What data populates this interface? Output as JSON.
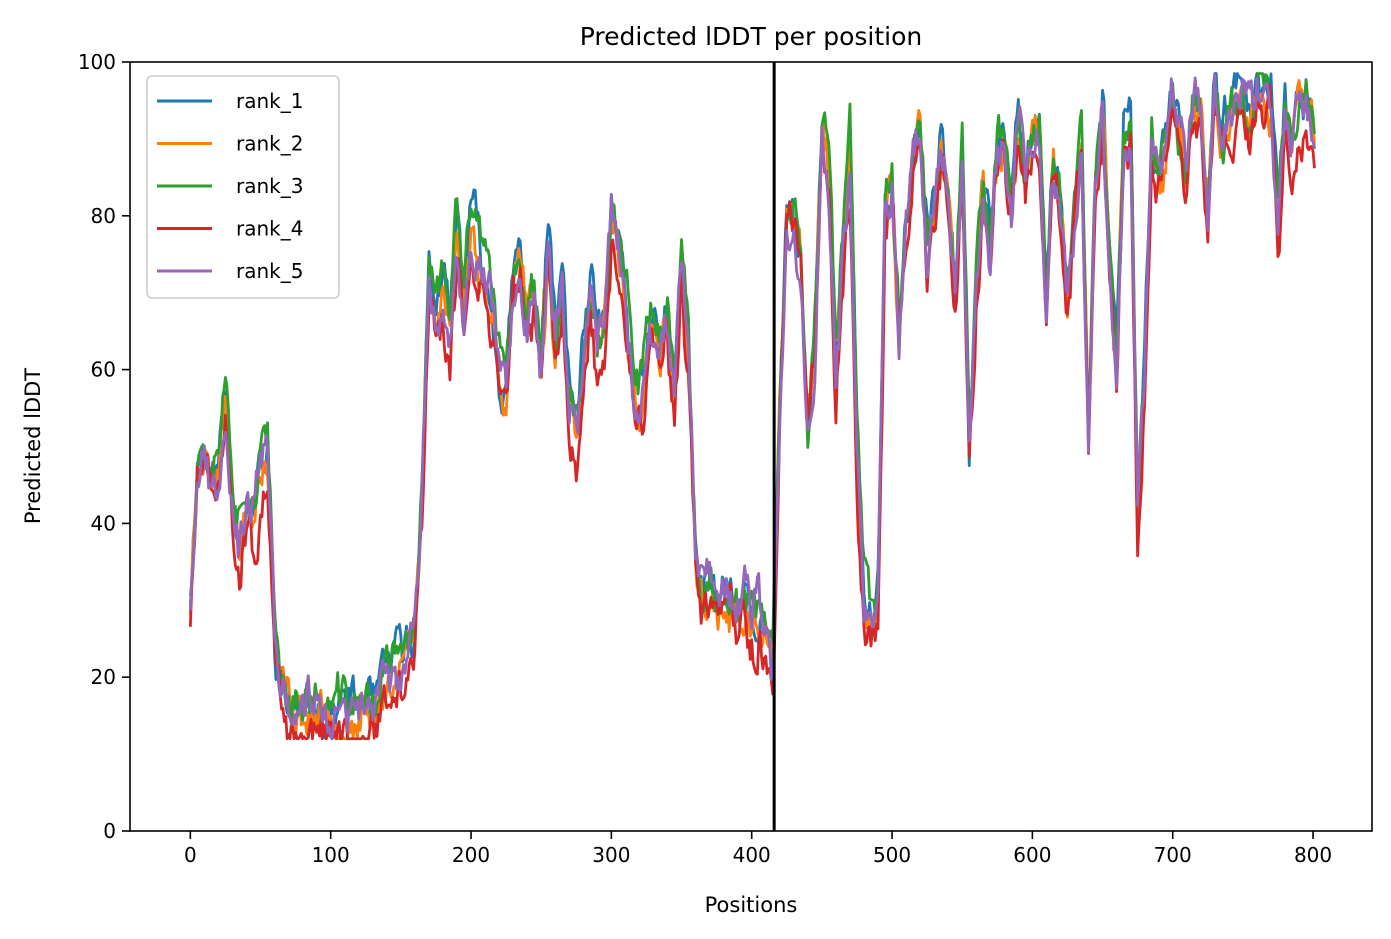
{
  "chart_data": {
    "type": "line",
    "title": "Predicted lDDT per position",
    "xlabel": "Positions",
    "ylabel": "Predicted lDDT",
    "xlim": [
      -43,
      842
    ],
    "ylim": [
      0,
      100
    ],
    "xticks": [
      0,
      100,
      200,
      300,
      400,
      500,
      600,
      700,
      800
    ],
    "yticks": [
      0,
      20,
      40,
      60,
      80,
      100
    ],
    "grid": false,
    "legend_position": "top-left",
    "vlines": [
      {
        "x": 416,
        "color": "#000000"
      }
    ],
    "base_profile": {
      "x": [
        0,
        5,
        10,
        15,
        20,
        25,
        30,
        35,
        40,
        45,
        50,
        55,
        60,
        65,
        70,
        80,
        90,
        100,
        110,
        120,
        130,
        140,
        150,
        160,
        165,
        170,
        175,
        180,
        185,
        190,
        195,
        200,
        205,
        210,
        215,
        220,
        225,
        230,
        235,
        240,
        245,
        250,
        255,
        260,
        265,
        270,
        275,
        280,
        285,
        290,
        295,
        300,
        305,
        310,
        315,
        320,
        325,
        330,
        335,
        340,
        345,
        350,
        355,
        360,
        365,
        370,
        375,
        380,
        385,
        390,
        395,
        400,
        405,
        410,
        415,
        418,
        420,
        425,
        430,
        435,
        440,
        445,
        450,
        455,
        460,
        465,
        470,
        475,
        480,
        485,
        490,
        495,
        500,
        505,
        510,
        515,
        520,
        525,
        530,
        535,
        540,
        545,
        550,
        555,
        560,
        565,
        570,
        575,
        580,
        585,
        590,
        595,
        600,
        605,
        610,
        615,
        620,
        625,
        630,
        635,
        640,
        645,
        650,
        655,
        660,
        665,
        670,
        675,
        680,
        685,
        690,
        695,
        700,
        705,
        710,
        715,
        720,
        725,
        730,
        735,
        740,
        745,
        750,
        755,
        760,
        765,
        770,
        775,
        780,
        785,
        790,
        795,
        800,
        802
      ],
      "y": [
        30,
        48,
        50,
        45,
        48,
        57,
        45,
        38,
        42,
        40,
        47,
        48,
        25,
        18,
        16,
        15,
        15,
        15,
        16,
        15,
        16,
        20,
        22,
        25,
        45,
        72,
        68,
        70,
        65,
        78,
        68,
        80,
        76,
        72,
        68,
        60,
        58,
        72,
        75,
        65,
        70,
        60,
        78,
        64,
        72,
        56,
        50,
        60,
        70,
        62,
        65,
        80,
        75,
        68,
        58,
        55,
        60,
        65,
        62,
        66,
        55,
        72,
        60,
        35,
        30,
        32,
        29,
        31,
        30,
        27,
        30,
        26,
        28,
        25,
        20,
        40,
        55,
        80,
        78,
        75,
        52,
        65,
        92,
        85,
        60,
        75,
        88,
        50,
        30,
        27,
        30,
        80,
        85,
        65,
        80,
        88,
        92,
        75,
        82,
        90,
        85,
        70,
        88,
        50,
        70,
        85,
        75,
        88,
        90,
        80,
        93,
        85,
        90,
        92,
        70,
        88,
        82,
        68,
        80,
        90,
        52,
        85,
        95,
        75,
        60,
        90,
        92,
        40,
        60,
        90,
        85,
        90,
        97,
        92,
        85,
        96,
        95,
        80,
        97,
        90,
        93,
        95,
        96,
        92,
        97,
        95,
        94,
        78,
        93,
        88,
        94,
        95,
        92,
        87
      ]
    },
    "series": [
      {
        "name": "rank_1",
        "color": "#1f77b4",
        "offset": 1.0,
        "seed": 11
      },
      {
        "name": "rank_2",
        "color": "#ff7f0e",
        "offset": -0.5,
        "seed": 23
      },
      {
        "name": "rank_3",
        "color": "#2ca02c",
        "offset": 1.5,
        "seed": 37
      },
      {
        "name": "rank_4",
        "color": "#d62728",
        "offset": -3.0,
        "seed": 51
      },
      {
        "name": "rank_5",
        "color": "#9467bd",
        "offset": 0.0,
        "seed": 67
      }
    ]
  }
}
